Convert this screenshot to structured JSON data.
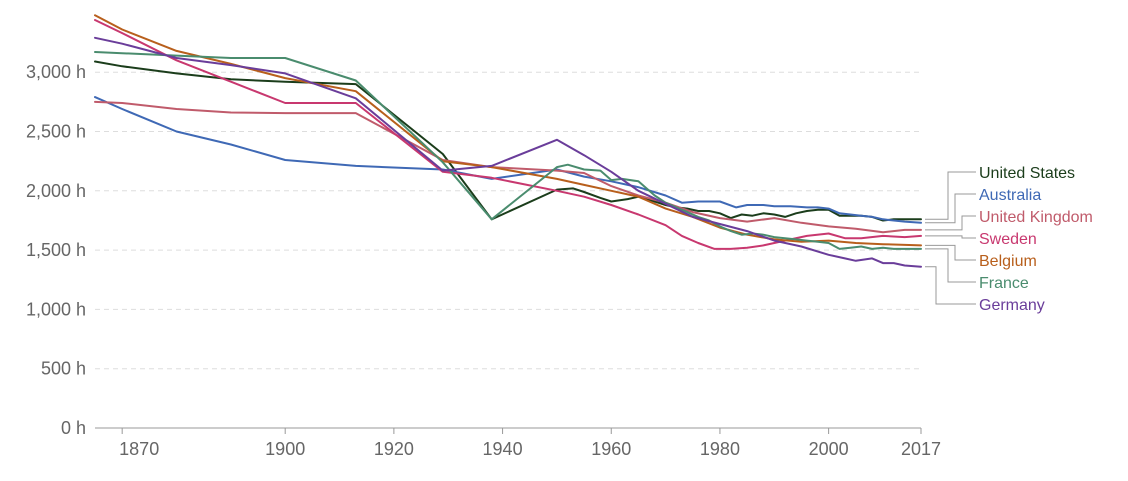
{
  "chart_data": {
    "type": "line",
    "title": "",
    "xlabel": "",
    "ylabel": "",
    "xlim": [
      1865,
      2017
    ],
    "ylim": [
      0,
      3400
    ],
    "x_ticks": [
      {
        "value": 1870,
        "label": "1870"
      },
      {
        "value": 1900,
        "label": "1900"
      },
      {
        "value": 1920,
        "label": "1920"
      },
      {
        "value": 1940,
        "label": "1940"
      },
      {
        "value": 1960,
        "label": "1960"
      },
      {
        "value": 1980,
        "label": "1980"
      },
      {
        "value": 2000,
        "label": "2000"
      },
      {
        "value": 2017,
        "label": "2017"
      }
    ],
    "y_ticks": [
      {
        "value": 0,
        "label": "0 h"
      },
      {
        "value": 500,
        "label": "500 h"
      },
      {
        "value": 1000,
        "label": "1,000 h"
      },
      {
        "value": 1500,
        "label": "1,500 h"
      },
      {
        "value": 2000,
        "label": "2,000 h"
      },
      {
        "value": 2500,
        "label": "2,500 h"
      },
      {
        "value": 3000,
        "label": "3,000 h"
      }
    ],
    "grid": "horizontal dashed",
    "legend_position": "right",
    "series": [
      {
        "name": "United States",
        "color": "#1b3d1b",
        "points": [
          [
            1865,
            3090
          ],
          [
            1870,
            3050
          ],
          [
            1880,
            2990
          ],
          [
            1890,
            2940
          ],
          [
            1900,
            2920
          ],
          [
            1913,
            2900
          ],
          [
            1929,
            2310
          ],
          [
            1938,
            1760
          ],
          [
            1950,
            2010
          ],
          [
            1953,
            2020
          ],
          [
            1955,
            1990
          ],
          [
            1958,
            1940
          ],
          [
            1960,
            1910
          ],
          [
            1963,
            1930
          ],
          [
            1965,
            1950
          ],
          [
            1968,
            1910
          ],
          [
            1970,
            1880
          ],
          [
            1972,
            1860
          ],
          [
            1974,
            1850
          ],
          [
            1976,
            1830
          ],
          [
            1978,
            1830
          ],
          [
            1980,
            1810
          ],
          [
            1982,
            1770
          ],
          [
            1984,
            1800
          ],
          [
            1986,
            1790
          ],
          [
            1988,
            1810
          ],
          [
            1990,
            1800
          ],
          [
            1992,
            1780
          ],
          [
            1994,
            1810
          ],
          [
            1996,
            1830
          ],
          [
            1998,
            1840
          ],
          [
            2000,
            1840
          ],
          [
            2002,
            1790
          ],
          [
            2004,
            1790
          ],
          [
            2006,
            1790
          ],
          [
            2008,
            1780
          ],
          [
            2010,
            1750
          ],
          [
            2012,
            1760
          ],
          [
            2014,
            1760
          ],
          [
            2017,
            1760
          ]
        ]
      },
      {
        "name": "Australia",
        "color": "#3f69b5",
        "points": [
          [
            1865,
            2790
          ],
          [
            1870,
            2690
          ],
          [
            1880,
            2500
          ],
          [
            1890,
            2390
          ],
          [
            1900,
            2260
          ],
          [
            1913,
            2210
          ],
          [
            1929,
            2180
          ],
          [
            1938,
            2100
          ],
          [
            1950,
            2180
          ],
          [
            1955,
            2120
          ],
          [
            1960,
            2080
          ],
          [
            1965,
            2030
          ],
          [
            1970,
            1960
          ],
          [
            1973,
            1900
          ],
          [
            1976,
            1910
          ],
          [
            1980,
            1910
          ],
          [
            1983,
            1860
          ],
          [
            1985,
            1880
          ],
          [
            1988,
            1880
          ],
          [
            1990,
            1870
          ],
          [
            1993,
            1870
          ],
          [
            1996,
            1860
          ],
          [
            1998,
            1860
          ],
          [
            2000,
            1850
          ],
          [
            2002,
            1810
          ],
          [
            2004,
            1800
          ],
          [
            2006,
            1790
          ],
          [
            2008,
            1780
          ],
          [
            2010,
            1760
          ],
          [
            2012,
            1750
          ],
          [
            2014,
            1740
          ],
          [
            2017,
            1730
          ]
        ]
      },
      {
        "name": "United Kingdom",
        "color": "#c05b6b",
        "points": [
          [
            1865,
            2750
          ],
          [
            1870,
            2740
          ],
          [
            1880,
            2690
          ],
          [
            1890,
            2660
          ],
          [
            1900,
            2655
          ],
          [
            1913,
            2655
          ],
          [
            1929,
            2260
          ],
          [
            1938,
            2200
          ],
          [
            1950,
            2170
          ],
          [
            1955,
            2150
          ],
          [
            1960,
            2040
          ],
          [
            1965,
            1960
          ],
          [
            1970,
            1900
          ],
          [
            1975,
            1820
          ],
          [
            1980,
            1770
          ],
          [
            1985,
            1740
          ],
          [
            1990,
            1770
          ],
          [
            1995,
            1730
          ],
          [
            2000,
            1700
          ],
          [
            2005,
            1680
          ],
          [
            2010,
            1650
          ],
          [
            2014,
            1670
          ],
          [
            2017,
            1670
          ]
        ]
      },
      {
        "name": "Sweden",
        "color": "#c8386f",
        "points": [
          [
            1865,
            3440
          ],
          [
            1870,
            3330
          ],
          [
            1880,
            3100
          ],
          [
            1890,
            2920
          ],
          [
            1900,
            2740
          ],
          [
            1913,
            2740
          ],
          [
            1929,
            2160
          ],
          [
            1938,
            2110
          ],
          [
            1950,
            2000
          ],
          [
            1955,
            1950
          ],
          [
            1960,
            1880
          ],
          [
            1965,
            1800
          ],
          [
            1970,
            1710
          ],
          [
            1973,
            1620
          ],
          [
            1976,
            1560
          ],
          [
            1979,
            1510
          ],
          [
            1982,
            1510
          ],
          [
            1985,
            1520
          ],
          [
            1988,
            1540
          ],
          [
            1990,
            1560
          ],
          [
            1993,
            1590
          ],
          [
            1996,
            1620
          ],
          [
            2000,
            1640
          ],
          [
            2003,
            1600
          ],
          [
            2006,
            1600
          ],
          [
            2010,
            1620
          ],
          [
            2014,
            1610
          ],
          [
            2017,
            1620
          ]
        ]
      },
      {
        "name": "Belgium",
        "color": "#b85f1c",
        "points": [
          [
            1865,
            3480
          ],
          [
            1870,
            3360
          ],
          [
            1880,
            3180
          ],
          [
            1890,
            3070
          ],
          [
            1900,
            2950
          ],
          [
            1913,
            2840
          ],
          [
            1929,
            2250
          ],
          [
            1938,
            2200
          ],
          [
            1950,
            2100
          ],
          [
            1955,
            2050
          ],
          [
            1960,
            2000
          ],
          [
            1965,
            1950
          ],
          [
            1970,
            1850
          ],
          [
            1975,
            1780
          ],
          [
            1980,
            1690
          ],
          [
            1985,
            1630
          ],
          [
            1990,
            1590
          ],
          [
            1995,
            1570
          ],
          [
            2000,
            1580
          ],
          [
            2005,
            1560
          ],
          [
            2010,
            1550
          ],
          [
            2017,
            1540
          ]
        ]
      },
      {
        "name": "France",
        "color": "#4a8c6e",
        "points": [
          [
            1865,
            3170
          ],
          [
            1870,
            3160
          ],
          [
            1880,
            3140
          ],
          [
            1890,
            3120
          ],
          [
            1900,
            3120
          ],
          [
            1913,
            2930
          ],
          [
            1929,
            2240
          ],
          [
            1938,
            1760
          ],
          [
            1950,
            2200
          ],
          [
            1952,
            2220
          ],
          [
            1955,
            2180
          ],
          [
            1958,
            2170
          ],
          [
            1960,
            2090
          ],
          [
            1962,
            2100
          ],
          [
            1965,
            2080
          ],
          [
            1968,
            1960
          ],
          [
            1970,
            1900
          ],
          [
            1972,
            1860
          ],
          [
            1974,
            1820
          ],
          [
            1976,
            1780
          ],
          [
            1978,
            1750
          ],
          [
            1980,
            1700
          ],
          [
            1982,
            1660
          ],
          [
            1984,
            1630
          ],
          [
            1986,
            1640
          ],
          [
            1988,
            1630
          ],
          [
            1990,
            1610
          ],
          [
            1992,
            1600
          ],
          [
            1994,
            1590
          ],
          [
            1996,
            1580
          ],
          [
            1998,
            1570
          ],
          [
            2000,
            1560
          ],
          [
            2002,
            1510
          ],
          [
            2004,
            1520
          ],
          [
            2006,
            1530
          ],
          [
            2008,
            1510
          ],
          [
            2010,
            1520
          ],
          [
            2012,
            1510
          ],
          [
            2014,
            1510
          ],
          [
            2017,
            1510
          ]
        ]
      },
      {
        "name": "Germany",
        "color": "#6a3d9a",
        "points": [
          [
            1865,
            3290
          ],
          [
            1870,
            3240
          ],
          [
            1880,
            3120
          ],
          [
            1890,
            3060
          ],
          [
            1900,
            2990
          ],
          [
            1913,
            2780
          ],
          [
            1929,
            2170
          ],
          [
            1938,
            2210
          ],
          [
            1950,
            2430
          ],
          [
            1955,
            2300
          ],
          [
            1960,
            2160
          ],
          [
            1965,
            2000
          ],
          [
            1970,
            1890
          ],
          [
            1975,
            1780
          ],
          [
            1980,
            1720
          ],
          [
            1985,
            1660
          ],
          [
            1990,
            1580
          ],
          [
            1995,
            1530
          ],
          [
            2000,
            1460
          ],
          [
            2003,
            1430
          ],
          [
            2005,
            1410
          ],
          [
            2008,
            1430
          ],
          [
            2010,
            1390
          ],
          [
            2012,
            1390
          ],
          [
            2014,
            1370
          ],
          [
            2017,
            1360
          ]
        ]
      }
    ]
  }
}
